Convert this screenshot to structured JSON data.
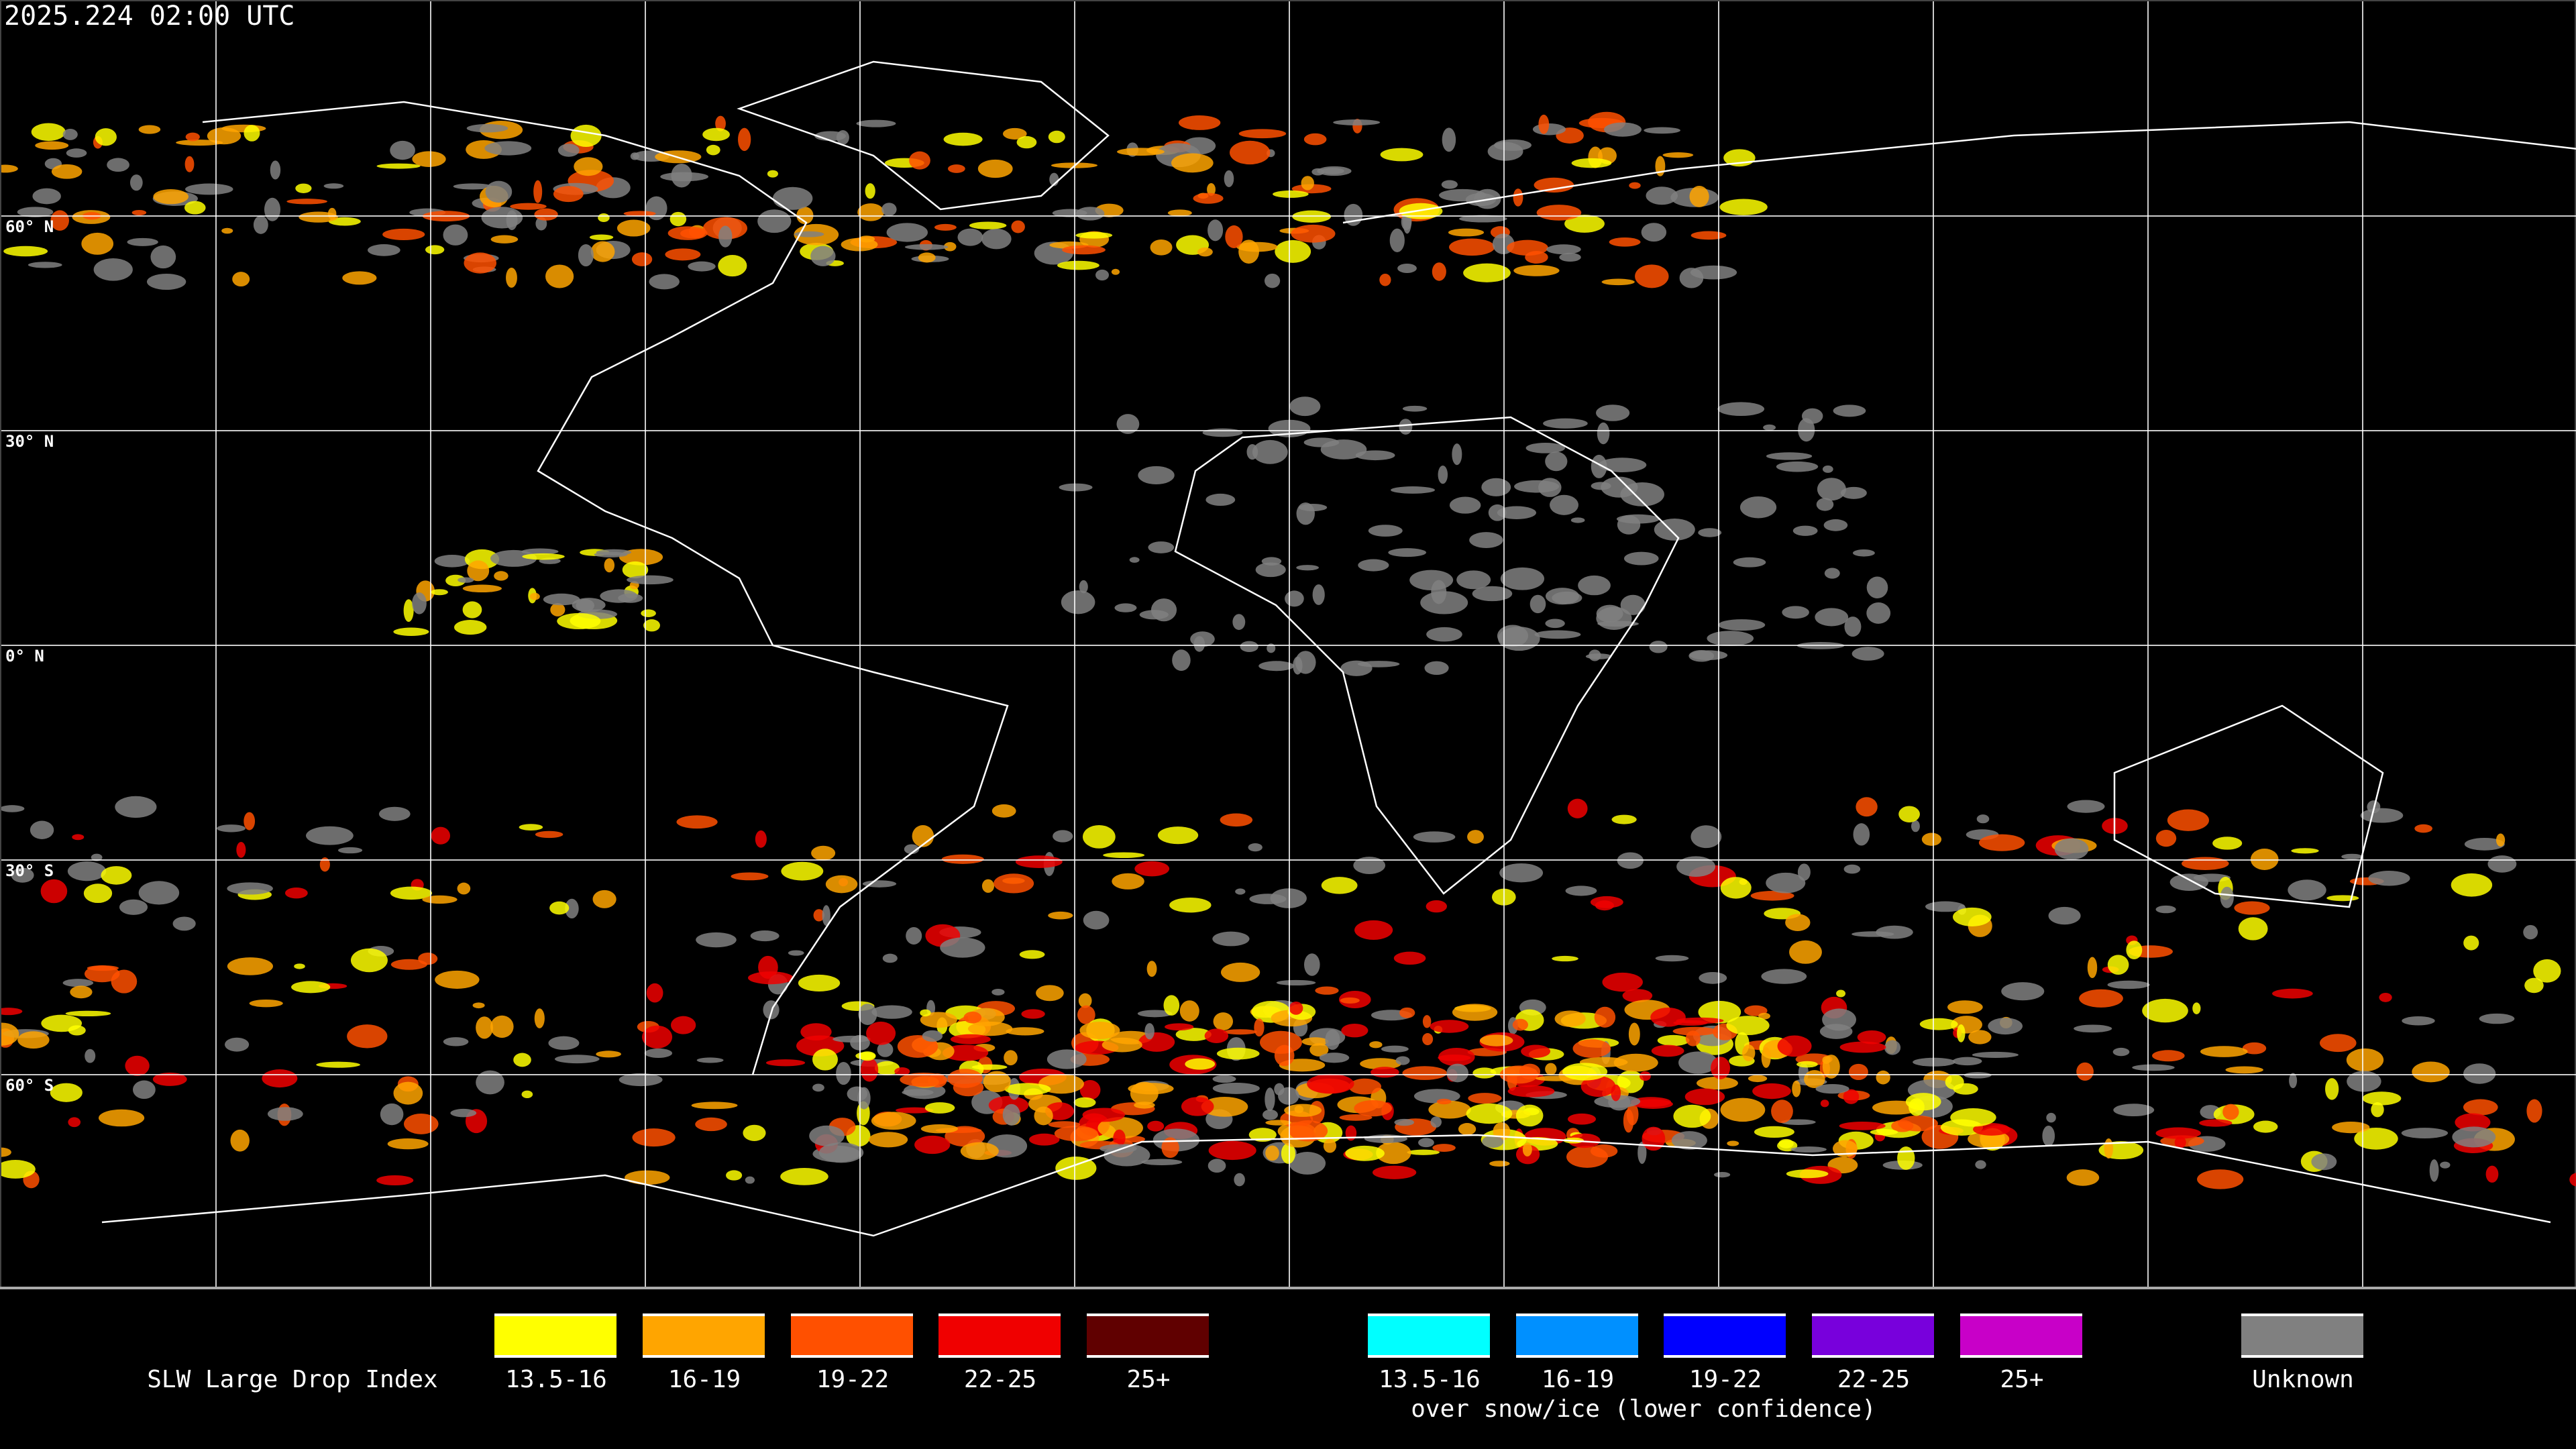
{
  "header": {
    "timestamp": "2025.224 02:00 UTC"
  },
  "map": {
    "lat_labels": [
      "60° N",
      "30° N",
      "0° N",
      "30° S",
      "60° S"
    ],
    "background": "#000000",
    "grid_color": "#ffffff",
    "coastline_color": "#ffffff"
  },
  "legend": {
    "title": "SLW Large Drop Index",
    "main": [
      {
        "label": "13.5-16",
        "color": "#ffff00"
      },
      {
        "label": "16-19",
        "color": "#ffa500"
      },
      {
        "label": "19-22",
        "color": "#ff5000"
      },
      {
        "label": "22-25",
        "color": "#f00000"
      },
      {
        "label": "25+",
        "color": "#600000"
      }
    ],
    "snow": [
      {
        "label": "13.5-16",
        "color": "#00ffff"
      },
      {
        "label": "16-19",
        "color": "#0090ff"
      },
      {
        "label": "19-22",
        "color": "#0000ff"
      },
      {
        "label": "22-25",
        "color": "#7800dc"
      },
      {
        "label": "25+",
        "color": "#c800c8"
      }
    ],
    "snow_caption": "over snow/ice (lower confidence)",
    "unknown": {
      "label": "Unknown",
      "color": "#808080"
    }
  }
}
